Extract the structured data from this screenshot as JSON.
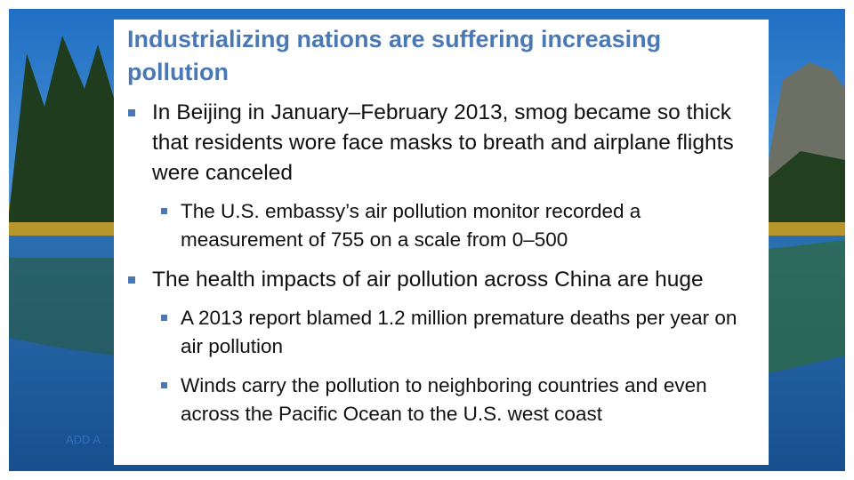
{
  "slide": {
    "title": "Industrializing nations are suffering increasing pollution",
    "footer": "ADD A",
    "bullets": [
      {
        "text": "In Beijing in January–February 2013, smog became so thick that residents wore face masks to breath and airplane flights were canceled",
        "sub": [
          "The U.S. embassy’s air pollution monitor recorded a measurement of 755 on a scale from 0–500"
        ]
      },
      {
        "text": "The health impacts of air pollution across China are huge",
        "sub": [
          "A 2013 report blamed 1.2 million premature deaths per year on air pollution",
          "Winds carry the pollution to neighboring countries and even across the Pacific Ocean to the U.S. west coast"
        ]
      }
    ]
  }
}
